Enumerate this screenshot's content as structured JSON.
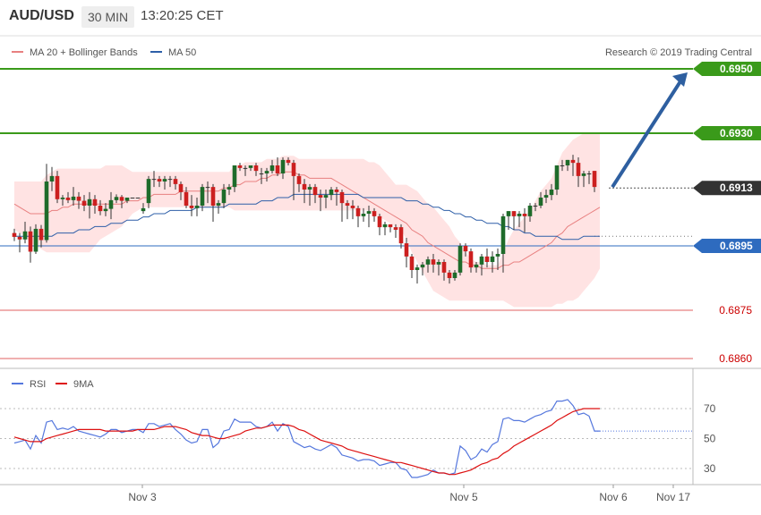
{
  "header": {
    "pair": "AUD/USD",
    "timeframe": "30 MIN",
    "time": "13:20:25 CET"
  },
  "legend": {
    "ma20_bb": "MA 20 + Bollinger Bands",
    "ma50": "MA 50",
    "credit": "Research © 2019 Trading Central"
  },
  "rsi_legend": {
    "rsi": "RSI",
    "ma9": "9MA"
  },
  "levels": [
    {
      "value": "0.6950",
      "style": "green"
    },
    {
      "value": "0.6930",
      "style": "green"
    },
    {
      "value": "0.6913",
      "style": "dark"
    },
    {
      "value": "0.6895",
      "style": "blue"
    },
    {
      "value": "0.6875",
      "style": "red"
    },
    {
      "value": "0.6860",
      "style": "red"
    }
  ],
  "x_labels": [
    "Nov 3",
    "Nov 5",
    "Nov 6",
    "Nov 17"
  ],
  "rsi_ticks": [
    "70",
    "50",
    "30"
  ],
  "colors": {
    "bull": "#1e6b2a",
    "bear": "#cc1f1f",
    "ma20": "#e88080",
    "ma50": "#2e5fa8",
    "band": "#ffd9d9",
    "green_line": "#3a9a1a",
    "blue_line": "#2e6bbf",
    "red_line": "#e06060",
    "arrow": "#2e5fa0",
    "rsi": "#5577dd",
    "rsi_ma": "#dd1111"
  },
  "chart_data": {
    "type": "candlestick",
    "ylim": [
      0.6858,
      0.6958
    ],
    "candles": [
      [
        0.6899,
        0.69003,
        0.68965,
        0.68978
      ],
      [
        0.68978,
        0.6899,
        0.6893,
        0.6897
      ],
      [
        0.6897,
        0.69025,
        0.68958,
        0.68995
      ],
      [
        0.68995,
        0.6901,
        0.68898,
        0.68932
      ],
      [
        0.68932,
        0.69017,
        0.68925,
        0.69003
      ],
      [
        0.69003,
        0.69015,
        0.68945,
        0.68968
      ],
      [
        0.68968,
        0.69205,
        0.6896,
        0.6915
      ],
      [
        0.6915,
        0.69195,
        0.6912,
        0.69167
      ],
      [
        0.69167,
        0.69183,
        0.69083,
        0.69095
      ],
      [
        0.69095,
        0.69108,
        0.69075,
        0.691
      ],
      [
        0.691,
        0.69117,
        0.69083,
        0.69092
      ],
      [
        0.69092,
        0.69133,
        0.69075,
        0.69103
      ],
      [
        0.69103,
        0.69117,
        0.69065,
        0.6909
      ],
      [
        0.6909,
        0.69108,
        0.69058,
        0.69075
      ],
      [
        0.69075,
        0.69117,
        0.69035,
        0.69095
      ],
      [
        0.69095,
        0.69108,
        0.6905,
        0.69075
      ],
      [
        0.69075,
        0.69092,
        0.69045,
        0.69058
      ],
      [
        0.69058,
        0.69083,
        0.69042,
        0.69065
      ],
      [
        0.69065,
        0.69117,
        0.69033,
        0.69092
      ],
      [
        0.69092,
        0.6911,
        0.69083,
        0.69102
      ],
      [
        0.69102,
        0.69108,
        0.69067,
        0.6909
      ],
      [
        0.6909,
        0.691,
        0.69083,
        0.691
      ],
      [
        0.691,
        0.691,
        0.691,
        0.691
      ],
      [
        0.691,
        0.691,
        0.691,
        0.691
      ],
      [
        0.69058,
        0.69083,
        0.6905,
        0.69067
      ],
      [
        0.69083,
        0.69167,
        0.69067,
        0.69158
      ],
      [
        0.69158,
        0.69183,
        0.69133,
        0.69158
      ],
      [
        0.69158,
        0.69167,
        0.69133,
        0.6915
      ],
      [
        0.6915,
        0.69167,
        0.69125,
        0.69158
      ],
      [
        0.69158,
        0.69167,
        0.69133,
        0.69158
      ],
      [
        0.69158,
        0.69167,
        0.69125,
        0.69142
      ],
      [
        0.69142,
        0.6915,
        0.69092,
        0.69117
      ],
      [
        0.69117,
        0.69133,
        0.69067,
        0.69075
      ],
      [
        0.69075,
        0.69108,
        0.69042,
        0.69067
      ],
      [
        0.69067,
        0.691,
        0.69042,
        0.69075
      ],
      [
        0.69075,
        0.69142,
        0.69058,
        0.69133
      ],
      [
        0.69133,
        0.6915,
        0.69083,
        0.69133
      ],
      [
        0.69133,
        0.69142,
        0.69025,
        0.69075
      ],
      [
        0.69075,
        0.69092,
        0.6905,
        0.69083
      ],
      [
        0.69083,
        0.69142,
        0.69067,
        0.69125
      ],
      [
        0.69125,
        0.69142,
        0.69108,
        0.69133
      ],
      [
        0.69133,
        0.692,
        0.69117,
        0.692
      ],
      [
        0.692,
        0.69208,
        0.69183,
        0.69192
      ],
      [
        0.69192,
        0.692,
        0.69167,
        0.69192
      ],
      [
        0.69192,
        0.692,
        0.69183,
        0.692
      ],
      [
        0.692,
        0.69208,
        0.69167,
        0.69183
      ],
      [
        0.69175,
        0.69192,
        0.69142,
        0.69175
      ],
      [
        0.69175,
        0.69192,
        0.6915,
        0.69183
      ],
      [
        0.69183,
        0.69217,
        0.69175,
        0.692
      ],
      [
        0.692,
        0.69225,
        0.69167,
        0.69175
      ],
      [
        0.69175,
        0.69225,
        0.69158,
        0.69217
      ],
      [
        0.69217,
        0.69225,
        0.692,
        0.69208
      ],
      [
        0.69208,
        0.69217,
        0.69092,
        0.69167
      ],
      [
        0.69167,
        0.69175,
        0.69117,
        0.69142
      ],
      [
        0.69142,
        0.69158,
        0.69083,
        0.69125
      ],
      [
        0.69125,
        0.69142,
        0.69075,
        0.69133
      ],
      [
        0.69133,
        0.69142,
        0.69083,
        0.69108
      ],
      [
        0.69108,
        0.69125,
        0.69058,
        0.691
      ],
      [
        0.691,
        0.69125,
        0.69067,
        0.69108
      ],
      [
        0.69108,
        0.69133,
        0.69092,
        0.69125
      ],
      [
        0.69125,
        0.69133,
        0.69075,
        0.69117
      ],
      [
        0.69117,
        0.69125,
        0.69025,
        0.69083
      ],
      [
        0.69083,
        0.69092,
        0.69033,
        0.69075
      ],
      [
        0.69075,
        0.69092,
        0.69033,
        0.69067
      ],
      [
        0.69067,
        0.69075,
        0.69008,
        0.69042
      ],
      [
        0.69042,
        0.69067,
        0.69025,
        0.6905
      ],
      [
        0.6905,
        0.69075,
        0.69008,
        0.69058
      ],
      [
        0.69058,
        0.69067,
        0.69025,
        0.69042
      ],
      [
        0.69042,
        0.6905,
        0.68983,
        0.69008
      ],
      [
        0.69008,
        0.69025,
        0.68983,
        0.69017
      ],
      [
        0.69017,
        0.69017,
        0.68992,
        0.69008
      ],
      [
        0.69008,
        0.69017,
        0.68975,
        0.69
      ],
      [
        0.69008,
        0.69017,
        0.68942,
        0.68958
      ],
      [
        0.68958,
        0.68975,
        0.68883,
        0.68917
      ],
      [
        0.68917,
        0.68925,
        0.6885,
        0.68875
      ],
      [
        0.68875,
        0.68892,
        0.68833,
        0.68883
      ],
      [
        0.68883,
        0.689,
        0.68858,
        0.68892
      ],
      [
        0.68892,
        0.68917,
        0.68867,
        0.68908
      ],
      [
        0.68908,
        0.68925,
        0.68867,
        0.68892
      ],
      [
        0.68892,
        0.68908,
        0.68858,
        0.689
      ],
      [
        0.689,
        0.68908,
        0.68842,
        0.68867
      ],
      [
        0.68867,
        0.68875,
        0.68833,
        0.6885
      ],
      [
        0.6885,
        0.68875,
        0.68842,
        0.68867
      ],
      [
        0.68867,
        0.68958,
        0.68858,
        0.6895
      ],
      [
        0.6895,
        0.68958,
        0.68917,
        0.68933
      ],
      [
        0.68933,
        0.68942,
        0.68867,
        0.68883
      ],
      [
        0.68883,
        0.689,
        0.68867,
        0.68892
      ],
      [
        0.68892,
        0.68925,
        0.68858,
        0.68917
      ],
      [
        0.68917,
        0.68942,
        0.68883,
        0.689
      ],
      [
        0.689,
        0.68933,
        0.68867,
        0.68917
      ],
      [
        0.68917,
        0.68942,
        0.68875,
        0.68925
      ],
      [
        0.68925,
        0.6905,
        0.68867,
        0.69042
      ],
      [
        0.69042,
        0.69058,
        0.69,
        0.69058
      ],
      [
        0.69058,
        0.69058,
        0.69,
        0.69042
      ],
      [
        0.69042,
        0.69058,
        0.69008,
        0.6905
      ],
      [
        0.6905,
        0.69067,
        0.68992,
        0.69042
      ],
      [
        0.69042,
        0.69083,
        0.69025,
        0.69075
      ],
      [
        0.69075,
        0.69083,
        0.69058,
        0.69075
      ],
      [
        0.69075,
        0.69117,
        0.69067,
        0.691
      ],
      [
        0.691,
        0.69125,
        0.69083,
        0.69108
      ],
      [
        0.69108,
        0.69142,
        0.69092,
        0.69125
      ],
      [
        0.69125,
        0.692,
        0.69108,
        0.692
      ],
      [
        0.692,
        0.69217,
        0.69183,
        0.692
      ],
      [
        0.692,
        0.69217,
        0.69183,
        0.69217
      ],
      [
        0.69217,
        0.69233,
        0.69167,
        0.69208
      ],
      [
        0.69208,
        0.69225,
        0.69133,
        0.69167
      ],
      [
        0.69167,
        0.69183,
        0.69133,
        0.69175
      ],
      [
        0.69175,
        0.69183,
        0.69142,
        0.69175
      ],
      [
        0.69183,
        0.69183,
        0.69117,
        0.69133
      ]
    ],
    "ma20": [
      0.6908,
      0.6907,
      0.6906,
      0.6905,
      0.6905,
      0.6905,
      0.6905,
      0.6906,
      0.6906,
      0.6907,
      0.6907,
      0.6908,
      0.6908,
      0.6908,
      0.6908,
      0.6908,
      0.6908,
      0.6908,
      0.6908,
      0.6908,
      0.6908,
      0.6909,
      0.6909,
      0.6909,
      0.691,
      0.691,
      0.6911,
      0.6911,
      0.6911,
      0.6911,
      0.6911,
      0.6912,
      0.6912,
      0.6912,
      0.6912,
      0.6912,
      0.6912,
      0.6912,
      0.6912,
      0.6913,
      0.6913,
      0.6914,
      0.6914,
      0.6915,
      0.6915,
      0.6915,
      0.6916,
      0.6916,
      0.6917,
      0.6917,
      0.6918,
      0.6918,
      0.6918,
      0.6917,
      0.6917,
      0.6916,
      0.6916,
      0.6916,
      0.6916,
      0.6916,
      0.6915,
      0.6914,
      0.6913,
      0.6912,
      0.6911,
      0.691,
      0.6909,
      0.6908,
      0.6907,
      0.6906,
      0.6905,
      0.6904,
      0.6903,
      0.6902,
      0.69,
      0.6899,
      0.6898,
      0.6896,
      0.6895,
      0.6894,
      0.6893,
      0.6892,
      0.6891,
      0.689,
      0.689,
      0.6889,
      0.6889,
      0.6888,
      0.6888,
      0.6888,
      0.6888,
      0.6889,
      0.6889,
      0.689,
      0.689,
      0.6891,
      0.6892,
      0.6893,
      0.6894,
      0.6895,
      0.6896,
      0.6898,
      0.6899,
      0.6901,
      0.6902,
      0.6903,
      0.6904,
      0.6905,
      0.6906,
      0.6907
    ],
    "bb_upper": [
      0.6915,
      0.6915,
      0.6915,
      0.6915,
      0.6915,
      0.6915,
      0.6917,
      0.6918,
      0.6919,
      0.6919,
      0.6919,
      0.6919,
      0.6919,
      0.6919,
      0.6919,
      0.6919,
      0.6919,
      0.692,
      0.692,
      0.692,
      0.692,
      0.6919,
      0.6918,
      0.6918,
      0.6918,
      0.6918,
      0.6918,
      0.6918,
      0.6918,
      0.6918,
      0.6918,
      0.6918,
      0.6918,
      0.6918,
      0.6918,
      0.6918,
      0.6918,
      0.6918,
      0.6918,
      0.6918,
      0.6918,
      0.692,
      0.692,
      0.6921,
      0.6921,
      0.6921,
      0.6921,
      0.6922,
      0.6922,
      0.6922,
      0.6923,
      0.6923,
      0.6923,
      0.6922,
      0.6922,
      0.6922,
      0.6922,
      0.6922,
      0.6922,
      0.6922,
      0.6922,
      0.6922,
      0.6922,
      0.6922,
      0.6922,
      0.6922,
      0.6921,
      0.6921,
      0.692,
      0.6918,
      0.6916,
      0.6914,
      0.6914,
      0.6914,
      0.6913,
      0.6912,
      0.691,
      0.6908,
      0.6907,
      0.6905,
      0.6903,
      0.6901,
      0.6898,
      0.6896,
      0.6893,
      0.6891,
      0.689,
      0.689,
      0.6889,
      0.6889,
      0.6889,
      0.6893,
      0.6897,
      0.69,
      0.6902,
      0.6904,
      0.6906,
      0.6909,
      0.6912,
      0.6914,
      0.6916,
      0.692,
      0.6924,
      0.6926,
      0.6928,
      0.6929,
      0.693,
      0.693,
      0.693,
      0.693
    ],
    "bb_lower": [
      0.69,
      0.6899,
      0.6898,
      0.6896,
      0.6895,
      0.6894,
      0.6893,
      0.6893,
      0.6893,
      0.6893,
      0.6893,
      0.6893,
      0.6893,
      0.6893,
      0.6893,
      0.6895,
      0.6897,
      0.6898,
      0.6899,
      0.69,
      0.6901,
      0.6903,
      0.6905,
      0.6906,
      0.6907,
      0.6907,
      0.6907,
      0.6907,
      0.6907,
      0.6907,
      0.6907,
      0.6907,
      0.6907,
      0.6907,
      0.6907,
      0.6907,
      0.6907,
      0.6907,
      0.6907,
      0.6907,
      0.6907,
      0.6906,
      0.6906,
      0.6906,
      0.6906,
      0.6906,
      0.6906,
      0.6906,
      0.6906,
      0.6906,
      0.6906,
      0.6906,
      0.6906,
      0.6906,
      0.6906,
      0.6906,
      0.6906,
      0.6906,
      0.6906,
      0.6906,
      0.6906,
      0.6906,
      0.6906,
      0.6906,
      0.6906,
      0.6906,
      0.6906,
      0.6905,
      0.6904,
      0.6903,
      0.6902,
      0.6901,
      0.69,
      0.6897,
      0.6893,
      0.689,
      0.6887,
      0.6884,
      0.6881,
      0.688,
      0.6879,
      0.6878,
      0.6878,
      0.6878,
      0.6878,
      0.6878,
      0.6878,
      0.6878,
      0.6878,
      0.6878,
      0.6878,
      0.6878,
      0.6877,
      0.6876,
      0.6876,
      0.6876,
      0.6876,
      0.6876,
      0.6876,
      0.6876,
      0.6876,
      0.6877,
      0.6877,
      0.6878,
      0.6878,
      0.6879,
      0.6881,
      0.6883,
      0.6885,
      0.6888
    ],
    "ma50": [
      0.6898,
      0.6898,
      0.6898,
      0.6898,
      0.6898,
      0.6898,
      0.6898,
      0.6898,
      0.6899,
      0.6899,
      0.6899,
      0.6899,
      0.69,
      0.69,
      0.69,
      0.6901,
      0.6901,
      0.6901,
      0.6902,
      0.6902,
      0.6902,
      0.6903,
      0.6903,
      0.6903,
      0.6904,
      0.6904,
      0.6905,
      0.6905,
      0.6905,
      0.6906,
      0.6906,
      0.6906,
      0.6906,
      0.6906,
      0.6907,
      0.6907,
      0.6907,
      0.6907,
      0.6907,
      0.6907,
      0.6908,
      0.6908,
      0.6908,
      0.6908,
      0.6908,
      0.6908,
      0.6909,
      0.6909,
      0.6909,
      0.691,
      0.691,
      0.691,
      0.6911,
      0.6911,
      0.6911,
      0.6911,
      0.6911,
      0.6911,
      0.6911,
      0.6911,
      0.6911,
      0.6911,
      0.6911,
      0.6911,
      0.6911,
      0.691,
      0.691,
      0.691,
      0.691,
      0.691,
      0.691,
      0.691,
      0.691,
      0.6909,
      0.6909,
      0.6909,
      0.6908,
      0.6908,
      0.6907,
      0.6907,
      0.6906,
      0.6906,
      0.6905,
      0.6905,
      0.6904,
      0.6904,
      0.6903,
      0.6903,
      0.6902,
      0.6902,
      0.6902,
      0.6901,
      0.6901,
      0.69,
      0.69,
      0.6899,
      0.6899,
      0.6898,
      0.6898,
      0.6898,
      0.6898,
      0.6898,
      0.6897,
      0.6897,
      0.6897,
      0.6897,
      0.6898,
      0.6898,
      0.6898,
      0.6898
    ],
    "projection": {
      "from": 0.6913,
      "to": 0.695
    },
    "rsi_ylim": [
      15,
      85
    ],
    "rsi": [
      47,
      48,
      49,
      43,
      52,
      47,
      61,
      62,
      56,
      57,
      56,
      58,
      55,
      54,
      53,
      52,
      51,
      53,
      56,
      56,
      54,
      55,
      56,
      56,
      54,
      60,
      60,
      58,
      59,
      60,
      56,
      53,
      49,
      47,
      48,
      56,
      56,
      44,
      47,
      55,
      56,
      63,
      61,
      61,
      61,
      58,
      57,
      58,
      61,
      55,
      60,
      58,
      48,
      46,
      44,
      45,
      43,
      42,
      44,
      46,
      44,
      39,
      38,
      37,
      35,
      36,
      36,
      35,
      32,
      33,
      34,
      34,
      30,
      29,
      24,
      24,
      25,
      26,
      29,
      27,
      27,
      26,
      27,
      45,
      42,
      36,
      38,
      43,
      41,
      46,
      48,
      63,
      64,
      62,
      62,
      61,
      63,
      65,
      66,
      68,
      69,
      75,
      75,
      76,
      72,
      66,
      67,
      65,
      55,
      55
    ],
    "rsi_ma9": [
      51,
      50,
      49,
      48,
      48,
      48,
      50,
      51,
      52,
      53,
      54,
      55,
      56,
      56,
      56,
      56,
      56,
      55,
      55,
      55,
      55,
      55,
      55,
      56,
      56,
      56,
      56,
      57,
      58,
      58,
      58,
      57,
      56,
      54,
      53,
      52,
      52,
      51,
      50,
      50,
      51,
      52,
      53,
      55,
      56,
      57,
      57,
      58,
      59,
      59,
      59,
      59,
      58,
      56,
      55,
      53,
      51,
      49,
      48,
      47,
      46,
      45,
      43,
      42,
      41,
      40,
      39,
      38,
      37,
      36,
      35,
      34,
      34,
      33,
      32,
      31,
      30,
      29,
      28,
      27,
      27,
      26,
      26,
      27,
      28,
      29,
      31,
      33,
      34,
      36,
      37,
      40,
      42,
      45,
      47,
      49,
      51,
      53,
      55,
      57,
      59,
      62,
      64,
      66,
      68,
      69,
      70,
      70,
      70,
      70
    ]
  }
}
